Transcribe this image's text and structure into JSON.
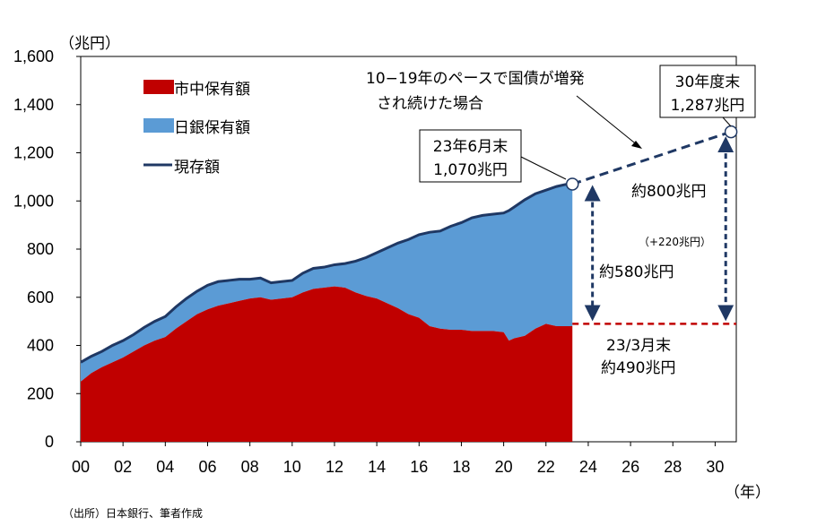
{
  "chart_data": {
    "type": "area",
    "ylim": [
      0,
      1600
    ],
    "xlim": [
      0,
      31
    ],
    "unit_label": "（兆円）",
    "x_axis_unit": "（年）",
    "y_ticks": [
      "0",
      "200",
      "400",
      "600",
      "800",
      "1,000",
      "1,200",
      "1,400",
      "1,600"
    ],
    "x_ticks": [
      "00",
      "02",
      "04",
      "06",
      "08",
      "10",
      "12",
      "14",
      "16",
      "18",
      "20",
      "22",
      "24",
      "26",
      "28",
      "30"
    ],
    "x_tick_values": [
      0,
      2,
      4,
      6,
      8,
      10,
      12,
      14,
      16,
      18,
      20,
      22,
      24,
      26,
      28,
      30
    ],
    "series": [
      {
        "name": "市中保有額",
        "color": "#c00000",
        "x": [
          0,
          0.5,
          1,
          1.5,
          2,
          2.5,
          3,
          3.5,
          4,
          4.5,
          5,
          5.5,
          6,
          6.5,
          7,
          7.5,
          8,
          8.5,
          9,
          9.5,
          10,
          10.5,
          11,
          11.5,
          12,
          12.5,
          13,
          13.5,
          14,
          14.5,
          15,
          15.5,
          16,
          16.5,
          17,
          17.5,
          18,
          18.5,
          19,
          19.5,
          20,
          20.25,
          20.5,
          21,
          21.5,
          22,
          22.5,
          23,
          23.25
        ],
        "values": [
          250,
          285,
          310,
          330,
          350,
          375,
          400,
          420,
          435,
          470,
          500,
          530,
          550,
          565,
          575,
          585,
          595,
          600,
          590,
          595,
          600,
          620,
          635,
          640,
          645,
          640,
          620,
          605,
          595,
          575,
          555,
          530,
          515,
          480,
          470,
          465,
          465,
          460,
          460,
          460,
          455,
          420,
          430,
          440,
          470,
          490,
          480,
          480,
          480
        ]
      },
      {
        "name": "日銀保有額",
        "color": "#5b9bd5",
        "x": [
          0,
          0.5,
          1,
          1.5,
          2,
          2.5,
          3,
          3.5,
          4,
          4.5,
          5,
          5.5,
          6,
          6.5,
          7,
          7.5,
          8,
          8.5,
          9,
          9.5,
          10,
          10.5,
          11,
          11.5,
          12,
          12.5,
          13,
          13.5,
          14,
          14.5,
          15,
          15.5,
          16,
          16.5,
          17,
          17.5,
          18,
          18.5,
          19,
          19.5,
          20,
          20.25,
          20.5,
          21,
          21.5,
          22,
          22.5,
          23,
          23.25
        ],
        "values": [
          80,
          70,
          65,
          70,
          70,
          70,
          75,
          80,
          85,
          90,
          95,
          95,
          100,
          100,
          95,
          90,
          80,
          80,
          70,
          70,
          70,
          80,
          85,
          85,
          90,
          100,
          130,
          160,
          190,
          230,
          270,
          310,
          345,
          390,
          405,
          430,
          445,
          470,
          480,
          485,
          495,
          540,
          545,
          565,
          560,
          555,
          580,
          590,
          590
        ]
      },
      {
        "name": "現存額",
        "color": "#1f3864",
        "x": [
          0,
          0.5,
          1,
          1.5,
          2,
          2.5,
          3,
          3.5,
          4,
          4.5,
          5,
          5.5,
          6,
          6.5,
          7,
          7.5,
          8,
          8.5,
          9,
          9.5,
          10,
          10.5,
          11,
          11.5,
          12,
          12.5,
          13,
          13.5,
          14,
          14.5,
          15,
          15.5,
          16,
          16.5,
          17,
          17.5,
          18,
          18.5,
          19,
          19.5,
          20,
          20.25,
          20.5,
          21,
          21.5,
          22,
          22.5,
          23,
          23.25
        ],
        "values": [
          330,
          355,
          375,
          400,
          420,
          445,
          475,
          500,
          520,
          560,
          595,
          625,
          650,
          665,
          670,
          675,
          675,
          680,
          660,
          665,
          670,
          700,
          720,
          725,
          735,
          740,
          750,
          765,
          785,
          805,
          825,
          840,
          860,
          870,
          875,
          895,
          910,
          930,
          940,
          945,
          950,
          960,
          975,
          1005,
          1030,
          1045,
          1060,
          1070,
          1070
        ]
      }
    ],
    "projection": {
      "from": {
        "x": 23.25,
        "y": 1070
      },
      "to": {
        "x": 30.75,
        "y": 1287
      },
      "market_level": 490
    },
    "annotations": {
      "pace_note_line1": "10−19年のペースで国債が増発",
      "pace_note_line2": "され続けた場合",
      "current_box_line1": "23年6月末",
      "current_box_line2": "1,070兆円",
      "future_box_line1": "30年度末",
      "future_box_line2": "1,287兆円",
      "boj_now": "約580兆円",
      "boj_future": "約800兆円",
      "boj_increase": "（+220兆円）",
      "market_label_line1": "23/3月末",
      "market_label_line2": "約490兆円"
    },
    "legend": [
      "市中保有額",
      "日銀保有額",
      "現存額"
    ],
    "source": "（出所）日本銀行、筆者作成",
    "grid": false,
    "legend_position": "top-left"
  }
}
